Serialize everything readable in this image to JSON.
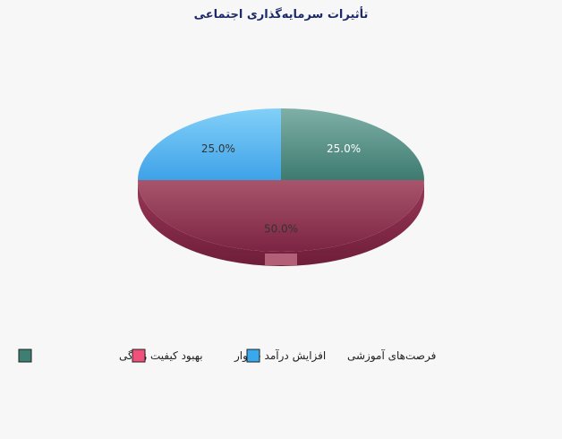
{
  "chart_data": {
    "type": "pie",
    "title": "تأثیرات سرمایه‌گذاری اجتماعی",
    "slices": [
      {
        "label": "بهبود کیفیت زندگی",
        "value": 25.0,
        "value_label": "25.0%",
        "color": "#3d7f72"
      },
      {
        "label": "افزایش درآمد خانوار",
        "value": 50.0,
        "value_label": "50.0%",
        "color": "#8b2a48"
      },
      {
        "label": "فرصت‌های آموزشی",
        "value": 25.0,
        "value_label": "25.0%",
        "color": "#3aa9ec"
      }
    ],
    "legend_position": "bottom-left",
    "style": "3d-tilted"
  },
  "colors": {
    "background": "#f7f7f7",
    "title": "#1c2a6b",
    "slice_label_light": "#ffffff",
    "slice_label_dark": "#333333"
  }
}
